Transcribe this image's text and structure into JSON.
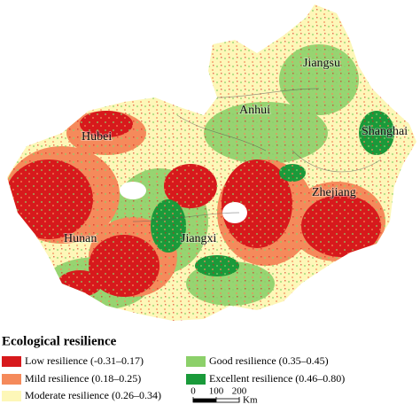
{
  "title": "Ecological resilience",
  "legend": [
    {
      "label": "Low resilience (-0.31–0.17)",
      "color": "#d7191c"
    },
    {
      "label": "Mild resilience (0.18–0.25)",
      "color": "#f58a5b"
    },
    {
      "label": "Moderate resilience (0.26–0.34)",
      "color": "#fdf7b8"
    },
    {
      "label": "Good resilience (0.35–0.45)",
      "color": "#8cd06a"
    },
    {
      "label": "Excellent resilience (0.46–0.80)",
      "color": "#1a9a3a"
    }
  ],
  "regions": [
    "Jiangsu",
    "Anhui",
    "Shanghai",
    "Hubei",
    "Zhejiang",
    "Hunan",
    "Jiangxi"
  ],
  "scale_bar": {
    "ticks": [
      0,
      100,
      200
    ],
    "unit": "Km"
  }
}
